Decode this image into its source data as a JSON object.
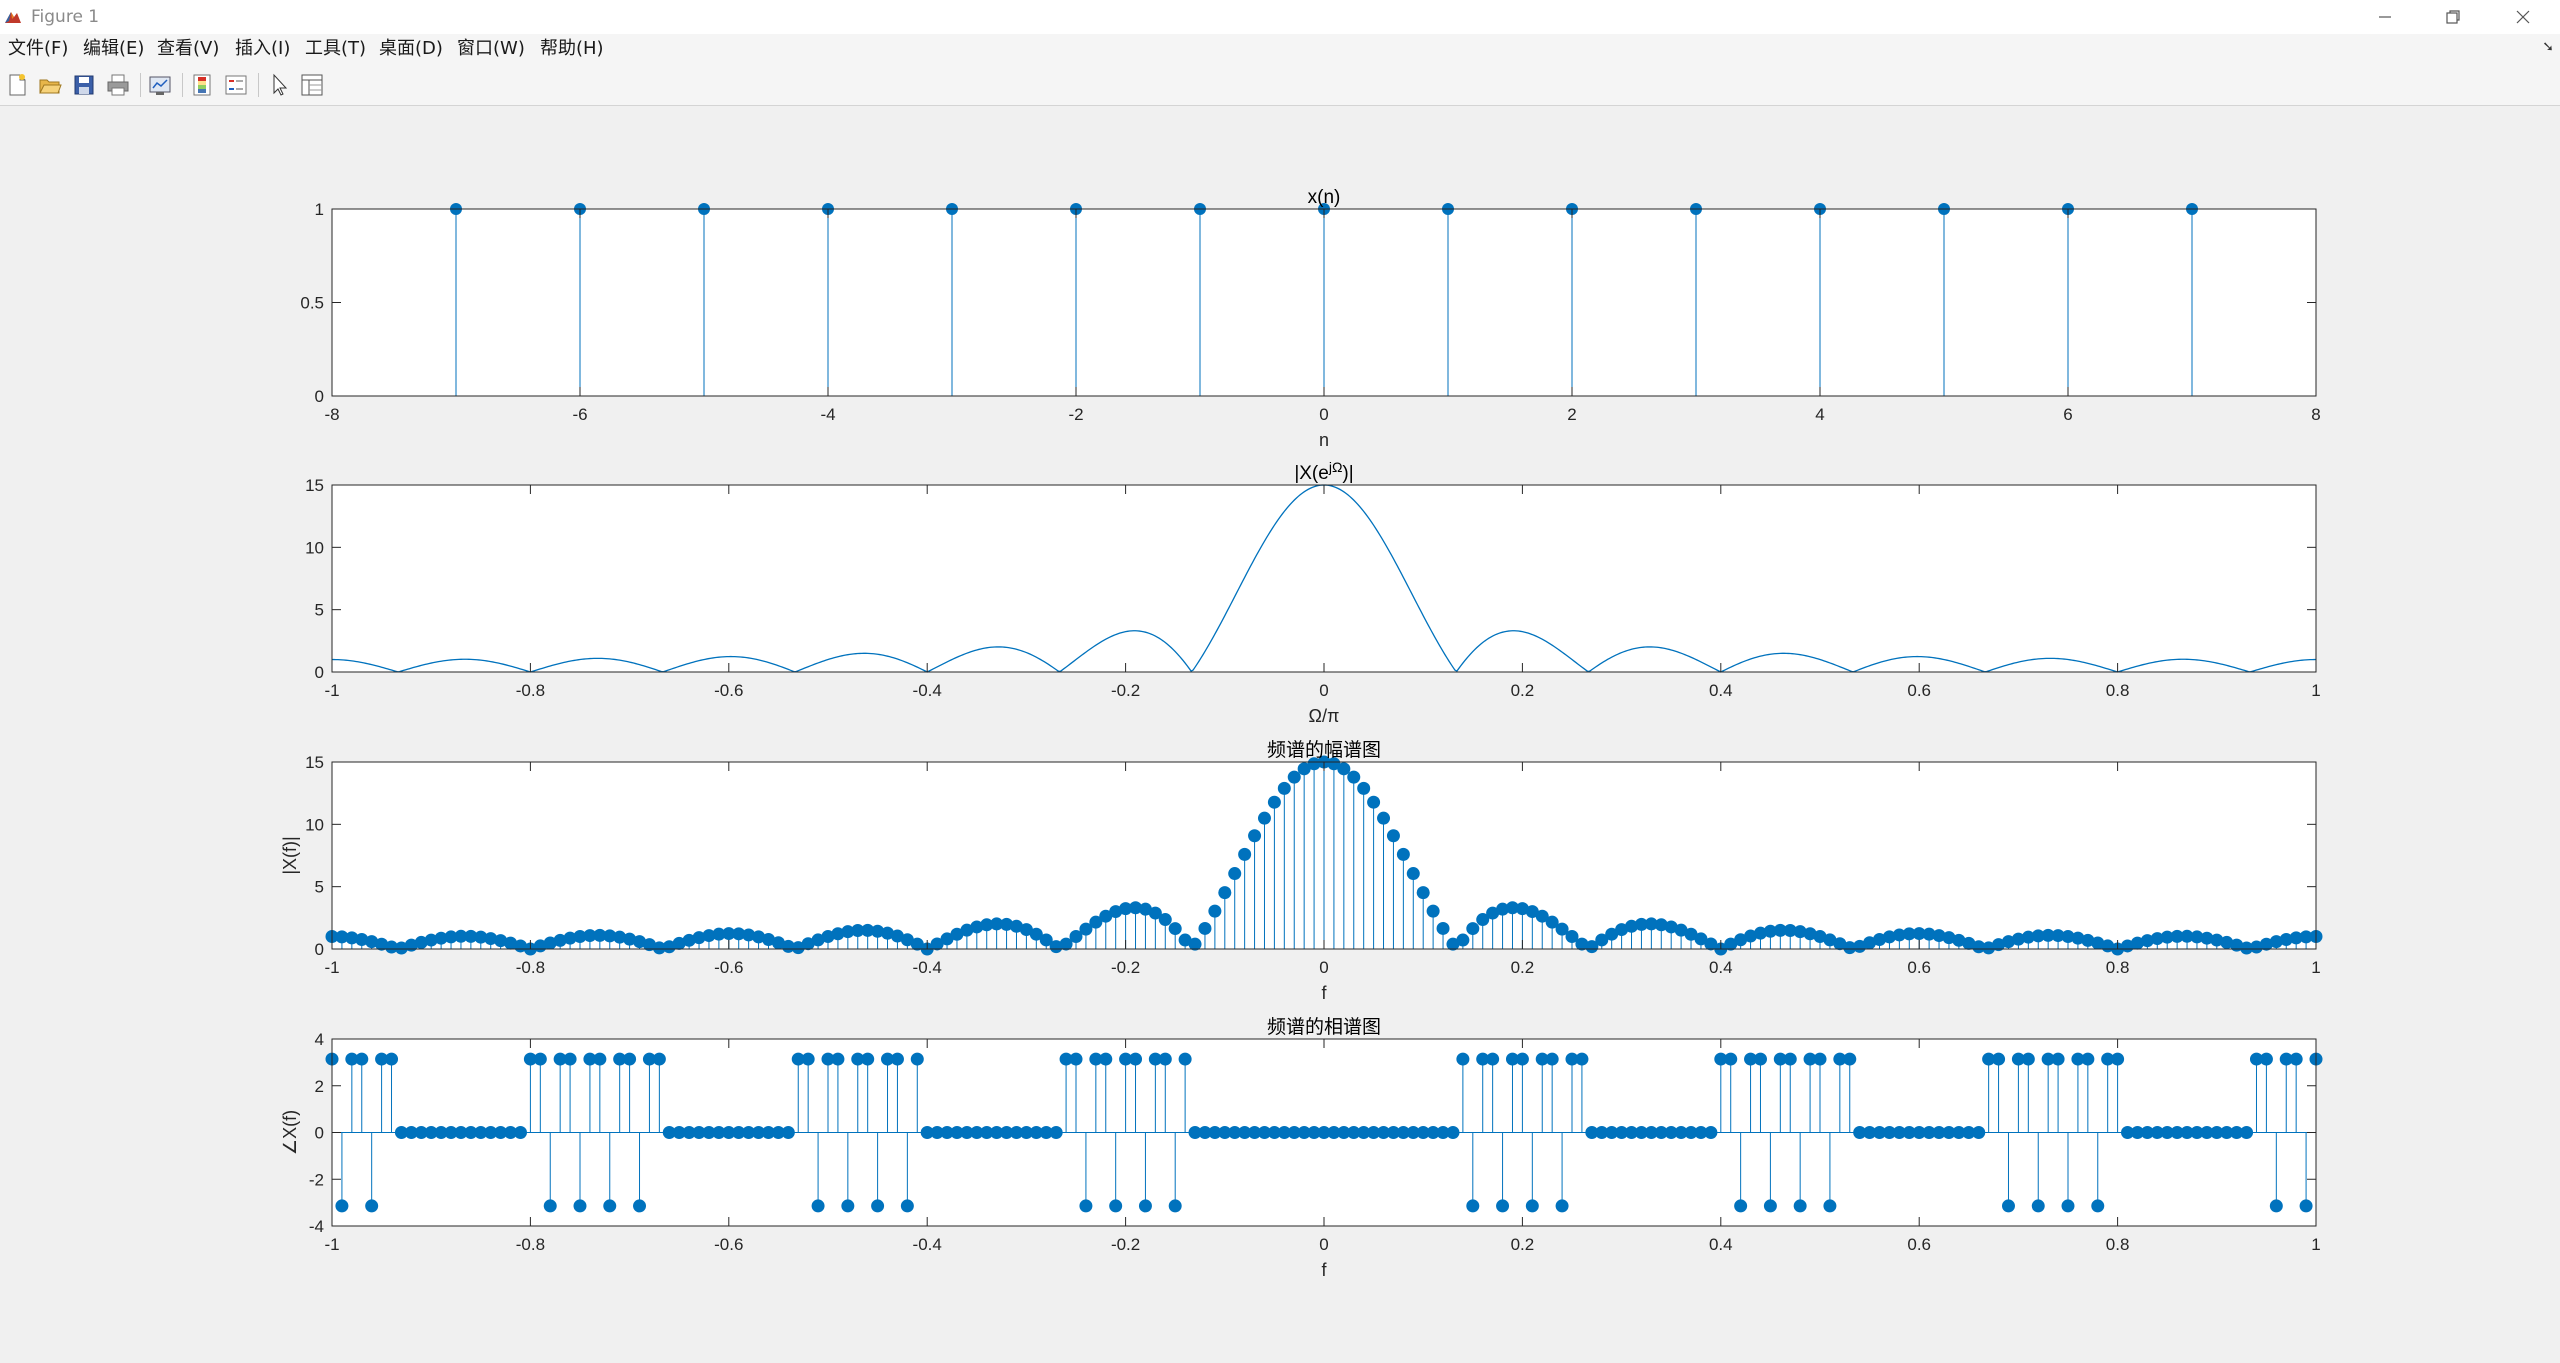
{
  "window": {
    "title": "Figure 1"
  },
  "menu": [
    "文件(F)",
    "编辑(E)",
    "查看(V)",
    "插入(I)",
    "工具(T)",
    "桌面(D)",
    "窗口(W)",
    "帮助(H)"
  ],
  "toolbar_icons": [
    "new-figure-icon",
    "open-file-icon",
    "save-icon",
    "print-icon",
    "link-plot-icon",
    "colorbar-icon",
    "legend-icon",
    "edit-plot-pointer-icon",
    "property-inspector-icon"
  ],
  "colors": {
    "series": "#0072BD",
    "axis": "#262626",
    "axes_bg": "#ffffff",
    "figure_bg": "#f0f0f0"
  },
  "chart_data": [
    {
      "type": "stem",
      "title": "x(n)",
      "xlabel": "n",
      "ylabel": "",
      "xlim": [
        -8,
        8
      ],
      "ylim": [
        0,
        1
      ],
      "xticks": [
        -8,
        -6,
        -4,
        -2,
        0,
        2,
        4,
        6,
        8
      ],
      "yticks": [
        0,
        0.5,
        1
      ],
      "x": [
        -7,
        -6,
        -5,
        -4,
        -3,
        -2,
        -1,
        0,
        1,
        2,
        3,
        4,
        5,
        6,
        7
      ],
      "y": [
        1,
        1,
        1,
        1,
        1,
        1,
        1,
        1,
        1,
        1,
        1,
        1,
        1,
        1,
        1
      ]
    },
    {
      "type": "line",
      "title": "|X(e^{jΩ})|",
      "xlabel": "Ω/π",
      "ylabel": "",
      "xlim": [
        -1,
        1
      ],
      "ylim": [
        0,
        15
      ],
      "xticks": [
        -1,
        -0.8,
        -0.6,
        -0.4,
        -0.2,
        0,
        0.2,
        0.4,
        0.6,
        0.8,
        1
      ],
      "yticks": [
        0,
        5,
        10,
        15
      ],
      "function": "|sin(15πx/2) / sin(πx/2)|",
      "x_range": [
        -1,
        1
      ],
      "num_points": 1001
    },
    {
      "type": "stem",
      "title": "频谱的幅谱图",
      "xlabel": "f",
      "ylabel": "|X(f)|",
      "xlim": [
        -1,
        1
      ],
      "ylim": [
        0,
        15
      ],
      "xticks": [
        -1,
        -0.8,
        -0.6,
        -0.4,
        -0.2,
        0,
        0.2,
        0.4,
        0.6,
        0.8,
        1
      ],
      "yticks": [
        0,
        5,
        10,
        15
      ],
      "function": "|sin(15πf/2) / sin(πf/2)|",
      "f_start": -1,
      "f_step": 0.01,
      "num_points": 201
    },
    {
      "type": "stem",
      "title": "频谱的相谱图",
      "xlabel": "f",
      "ylabel": "∠X(f)",
      "xlim": [
        -1,
        1
      ],
      "ylim": [
        -4,
        4
      ],
      "xticks": [
        -1,
        -0.8,
        -0.6,
        -0.4,
        -0.2,
        0,
        0.2,
        0.4,
        0.6,
        0.8,
        1
      ],
      "yticks": [
        -4,
        -2,
        0,
        2,
        4
      ],
      "function": "angle(sin(15πf/2) / sin(πf/2)) ∈ {0, ±π}",
      "f_start": -1,
      "f_step": 0.01,
      "num_points": 201
    }
  ]
}
